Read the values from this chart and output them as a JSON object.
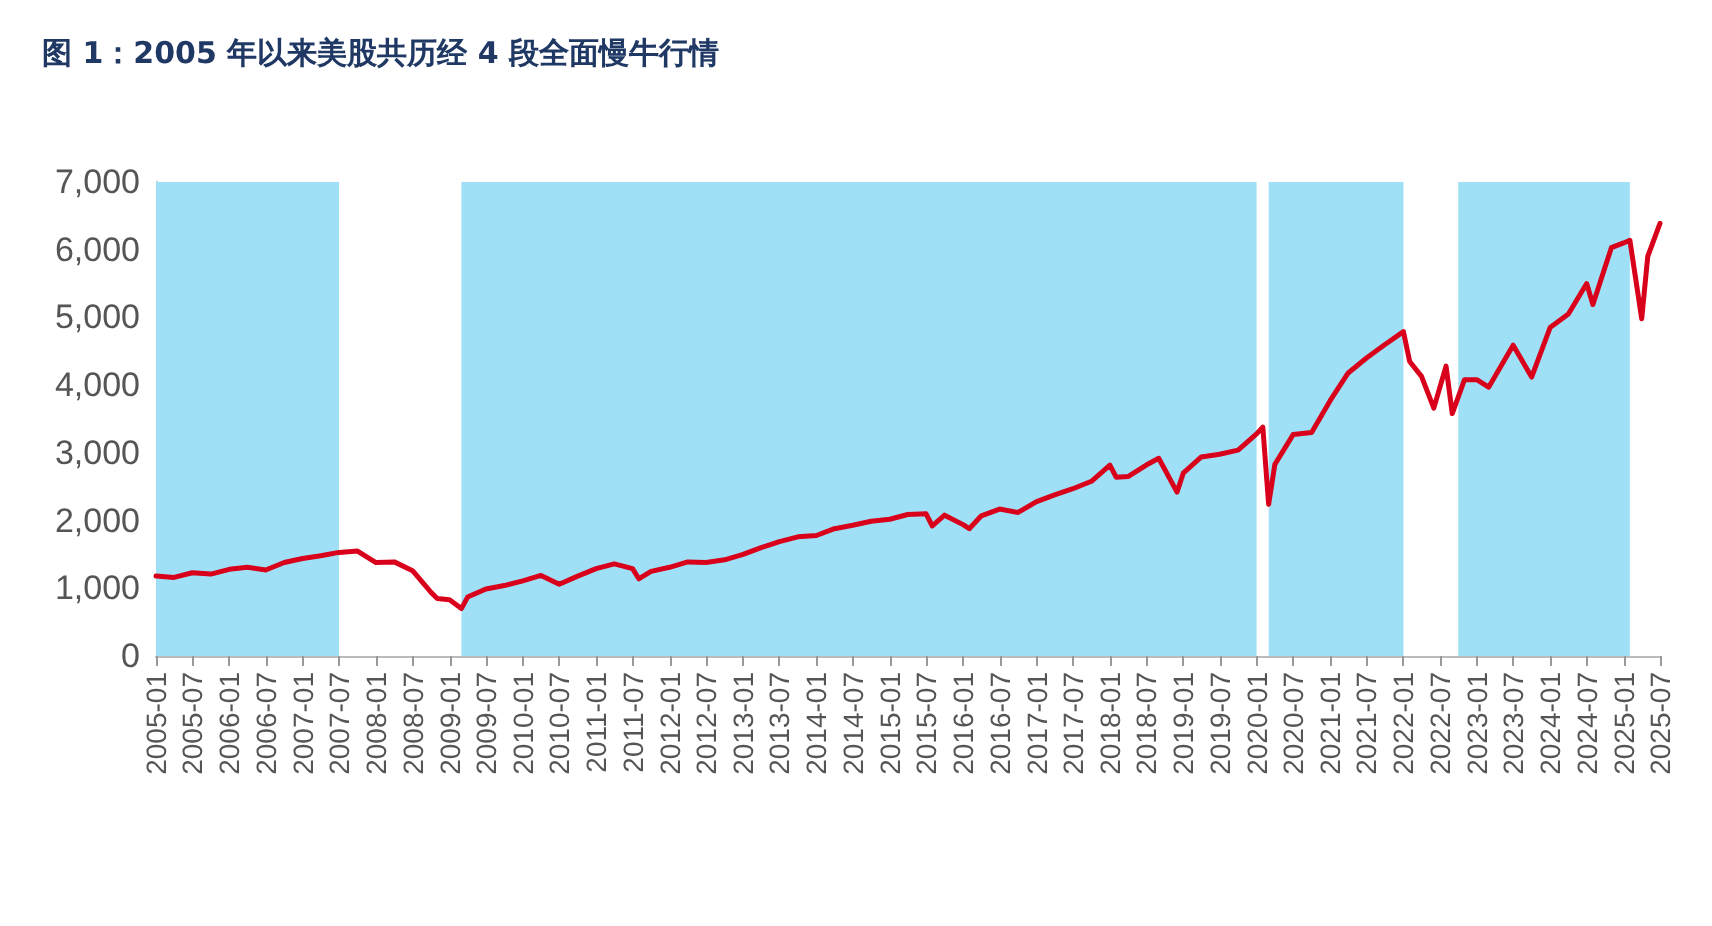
{
  "chart_data": {
    "type": "line",
    "title": "图 1：2005 年以来美股共历经 4 段全面慢牛行情",
    "x": [
      "2005-01",
      "2005-04",
      "2005-07",
      "2005-10",
      "2006-01",
      "2006-04",
      "2006-07",
      "2006-10",
      "2007-01",
      "2007-04",
      "2007-07",
      "2007-10",
      "2008-01",
      "2008-04",
      "2008-07",
      "2008-10",
      "2008-11",
      "2009-01",
      "2009-03",
      "2009-04",
      "2009-07",
      "2009-10",
      "2010-01",
      "2010-04",
      "2010-07",
      "2010-10",
      "2011-01",
      "2011-04",
      "2011-07",
      "2011-08",
      "2011-10",
      "2012-01",
      "2012-04",
      "2012-07",
      "2012-10",
      "2013-01",
      "2013-04",
      "2013-07",
      "2013-10",
      "2014-01",
      "2014-04",
      "2014-07",
      "2014-10",
      "2015-01",
      "2015-04",
      "2015-07",
      "2015-08",
      "2015-10",
      "2016-01",
      "2016-02",
      "2016-04",
      "2016-07",
      "2016-10",
      "2017-01",
      "2017-04",
      "2017-07",
      "2017-10",
      "2018-01",
      "2018-02",
      "2018-04",
      "2018-07",
      "2018-09",
      "2018-12",
      "2019-01",
      "2019-04",
      "2019-07",
      "2019-10",
      "2020-01",
      "2020-02",
      "2020-03",
      "2020-04",
      "2020-07",
      "2020-10",
      "2021-01",
      "2021-04",
      "2021-07",
      "2021-10",
      "2022-01",
      "2022-02",
      "2022-04",
      "2022-06",
      "2022-08",
      "2022-09",
      "2022-11",
      "2023-01",
      "2023-03",
      "2023-07",
      "2023-10",
      "2024-01",
      "2024-04",
      "2024-07",
      "2024-08",
      "2024-11",
      "2025-01",
      "2025-02",
      "2025-04",
      "2025-05",
      "2025-07"
    ],
    "series": [
      {
        "color": "#d9001b",
        "values": [
          1180,
          1160,
          1230,
          1210,
          1280,
          1310,
          1270,
          1380,
          1440,
          1480,
          1530,
          1550,
          1380,
          1390,
          1260,
          940,
          850,
          830,
          700,
          870,
          990,
          1040,
          1110,
          1190,
          1060,
          1180,
          1290,
          1360,
          1290,
          1140,
          1250,
          1310,
          1390,
          1380,
          1420,
          1500,
          1600,
          1690,
          1760,
          1780,
          1880,
          1930,
          1990,
          2020,
          2090,
          2100,
          1920,
          2080,
          1940,
          1880,
          2070,
          2170,
          2120,
          2280,
          2380,
          2470,
          2580,
          2820,
          2640,
          2650,
          2820,
          2920,
          2420,
          2700,
          2940,
          2980,
          3040,
          3280,
          3380,
          2240,
          2830,
          3270,
          3300,
          3770,
          4180,
          4400,
          4600,
          4790,
          4350,
          4130,
          3660,
          4280,
          3580,
          4080,
          4080,
          3970,
          4590,
          4120,
          4850,
          5050,
          5500,
          5190,
          6030,
          6100,
          6140,
          4980,
          5900,
          6390
        ]
      }
    ],
    "xlim": [
      "2005-01",
      "2025-07"
    ],
    "xticks": [
      "2005-01",
      "2005-07",
      "2006-01",
      "2006-07",
      "2007-01",
      "2007-07",
      "2008-01",
      "2008-07",
      "2009-01",
      "2009-07",
      "2010-01",
      "2010-07",
      "2011-01",
      "2011-07",
      "2012-01",
      "2012-07",
      "2013-01",
      "2013-07",
      "2014-01",
      "2014-07",
      "2015-01",
      "2015-07",
      "2016-01",
      "2016-07",
      "2017-01",
      "2017-07",
      "2018-01",
      "2018-07",
      "2019-01",
      "2019-07",
      "2020-01",
      "2020-07",
      "2021-01",
      "2021-07",
      "2022-01",
      "2022-07",
      "2023-01",
      "2023-07",
      "2024-01",
      "2024-07",
      "2025-01",
      "2025-07"
    ],
    "ylim": [
      0,
      7000
    ],
    "yticks": [
      {
        "value": 0,
        "label": "0"
      },
      {
        "value": 1000,
        "label": "1,000"
      },
      {
        "value": 2000,
        "label": "2,000"
      },
      {
        "value": 3000,
        "label": "3,000"
      },
      {
        "value": 4000,
        "label": "4,000"
      },
      {
        "value": 5000,
        "label": "5,000"
      },
      {
        "value": 6000,
        "label": "6,000"
      },
      {
        "value": 7000,
        "label": "7,000"
      }
    ],
    "bands": [
      {
        "axis": "x",
        "from": "2005-01",
        "to": "2007-07",
        "color": "#a0e0f7"
      },
      {
        "axis": "x",
        "from": "2009-03",
        "to": "2020-01",
        "color": "#a0e0f7"
      },
      {
        "axis": "x",
        "from": "2020-03",
        "to": "2022-01",
        "color": "#a0e0f7"
      },
      {
        "axis": "x",
        "from": "2022-10",
        "to": "2025-02",
        "color": "#a0e0f7"
      }
    ],
    "grid": false,
    "marker": "none",
    "line_style": "solid"
  }
}
